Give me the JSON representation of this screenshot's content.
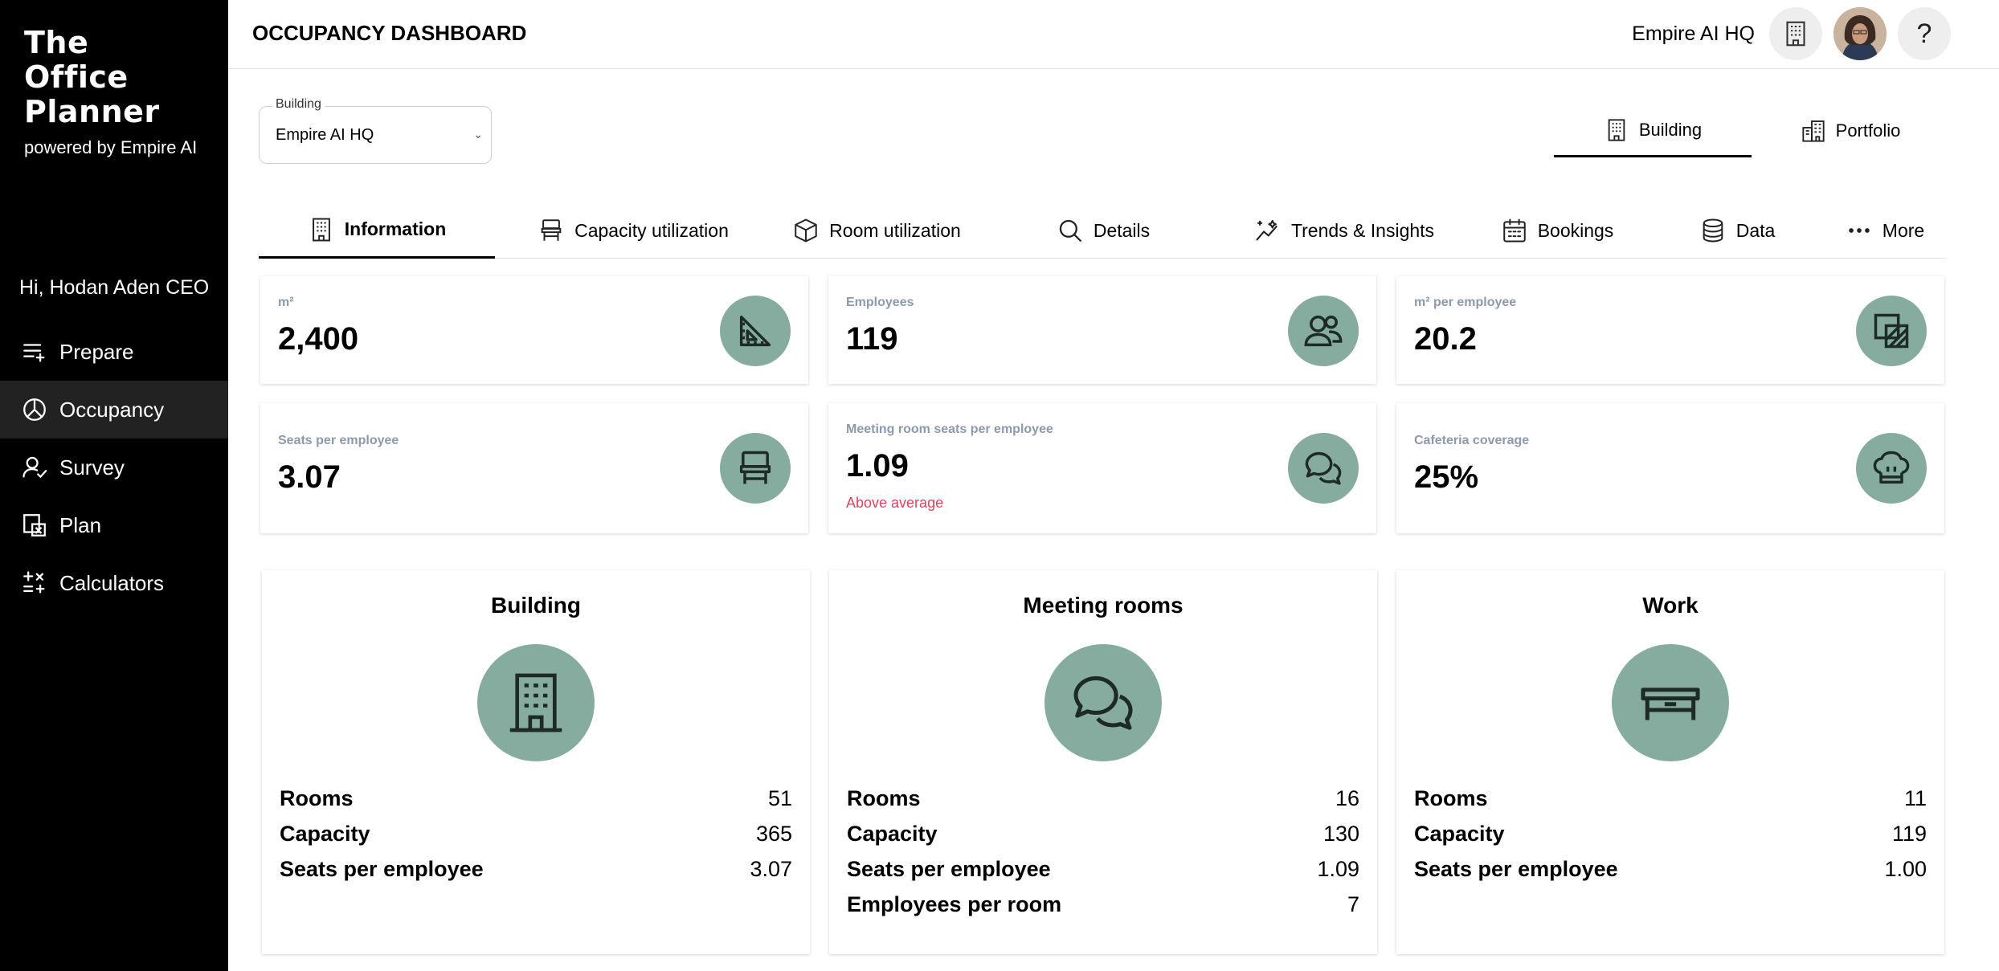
{
  "sidebar": {
    "brand_line1": "The",
    "brand_line2": "Office",
    "brand_line3": "Planner",
    "brand_sub": "powered by Empire AI",
    "greeting": "Hi, Hodan Aden CEO",
    "items": [
      {
        "label": "Prepare",
        "icon": "list-add-icon"
      },
      {
        "label": "Occupancy",
        "icon": "pie-chart-icon",
        "active": true
      },
      {
        "label": "Survey",
        "icon": "user-check-icon"
      },
      {
        "label": "Plan",
        "icon": "floorplan-icon"
      },
      {
        "label": "Calculators",
        "icon": "calculator-icon"
      }
    ]
  },
  "header": {
    "title": "OCCUPANCY DASHBOARD",
    "building_name": "Empire AI HQ",
    "help": "?"
  },
  "building_select": {
    "legend": "Building",
    "value": "Empire AI HQ"
  },
  "scope_tabs": [
    {
      "label": "Building",
      "active": true
    },
    {
      "label": "Portfolio",
      "active": false
    }
  ],
  "tabs": [
    {
      "label": "Information",
      "active": true
    },
    {
      "label": "Capacity utilization"
    },
    {
      "label": "Room utilization"
    },
    {
      "label": "Details"
    },
    {
      "label": "Trends & Insights"
    },
    {
      "label": "Bookings"
    },
    {
      "label": "Data"
    },
    {
      "label": "More"
    }
  ],
  "kpis": [
    {
      "label": "m²",
      "value": "2,400",
      "icon": "ruler-triangle-icon"
    },
    {
      "label": "Employees",
      "value": "119",
      "icon": "people-icon"
    },
    {
      "label": "m² per employee",
      "value": "20.2",
      "icon": "area-icon"
    },
    {
      "label": "Seats per employee",
      "value": "3.07",
      "icon": "chair-icon"
    },
    {
      "label": "Meeting room seats per employee",
      "value": "1.09",
      "note": "Above average",
      "icon": "chat-bubbles-icon"
    },
    {
      "label": "Cafeteria coverage",
      "value": "25%",
      "icon": "chef-hat-icon"
    }
  ],
  "cards": [
    {
      "title": "Building",
      "icon": "building-icon",
      "rows": [
        {
          "label": "Rooms",
          "value": "51"
        },
        {
          "label": "Capacity",
          "value": "365"
        },
        {
          "label": "Seats per employee",
          "value": "3.07"
        }
      ]
    },
    {
      "title": "Meeting rooms",
      "icon": "chat-bubbles-icon",
      "rows": [
        {
          "label": "Rooms",
          "value": "16"
        },
        {
          "label": "Capacity",
          "value": "130"
        },
        {
          "label": "Seats per employee",
          "value": "1.09"
        },
        {
          "label": "Employees per room",
          "value": "7"
        }
      ]
    },
    {
      "title": "Work",
      "icon": "desk-icon",
      "rows": [
        {
          "label": "Rooms",
          "value": "11"
        },
        {
          "label": "Capacity",
          "value": "119"
        },
        {
          "label": "Seats per employee",
          "value": "1.00"
        }
      ]
    }
  ],
  "colors": {
    "sidebar_bg": "#000000",
    "sidebar_active": "#222222",
    "accent_icon_bg": "#86aca0",
    "alert_text": "#e0435a",
    "kpi_label": "#8d99ad"
  }
}
